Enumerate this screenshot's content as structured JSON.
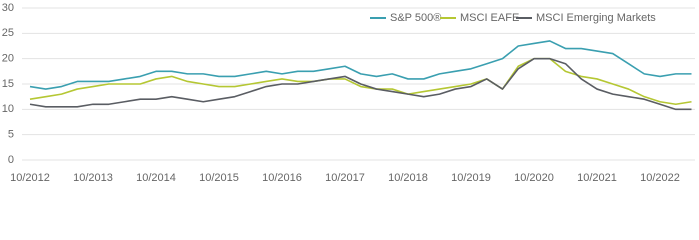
{
  "chart_data": {
    "type": "line",
    "categories": [
      "10/2012",
      null,
      null,
      null,
      "10/2013",
      null,
      null,
      null,
      "10/2014",
      null,
      null,
      null,
      "10/2015",
      null,
      null,
      null,
      "10/2016",
      null,
      null,
      null,
      "10/2017",
      null,
      null,
      null,
      "10/2018",
      null,
      null,
      null,
      "10/2019",
      null,
      null,
      null,
      "10/2020",
      null,
      null,
      null,
      "10/2021",
      null,
      null,
      null,
      "10/2022",
      null,
      null
    ],
    "series": [
      {
        "name": "S&P 500®",
        "color": "#3a9fb0",
        "values": [
          14.5,
          14,
          14.5,
          15.5,
          15.5,
          15.5,
          16,
          16.5,
          17.5,
          17.5,
          17,
          17,
          16.5,
          16.5,
          17,
          17.5,
          17,
          17.5,
          17.5,
          18,
          18.5,
          17,
          16.5,
          17,
          16,
          16,
          17,
          17.5,
          18,
          19,
          20,
          22.5,
          23,
          23.5,
          22,
          22,
          21.5,
          21,
          19,
          17,
          16.5,
          17,
          17
        ]
      },
      {
        "name": "MSCI EAFE",
        "color": "#b5c733",
        "values": [
          12,
          12.5,
          13,
          14,
          14.5,
          15,
          15,
          15,
          16,
          16.5,
          15.5,
          15,
          14.5,
          14.5,
          15,
          15.5,
          16,
          15.5,
          15.5,
          16,
          16,
          14.5,
          14,
          14,
          13,
          13.5,
          14,
          14.5,
          15,
          16,
          14,
          18.5,
          20,
          20,
          17.5,
          16.5,
          16,
          15,
          14,
          12.5,
          11.5,
          11,
          11.5
        ]
      },
      {
        "name": "MSCI Emerging Markets",
        "color": "#5a5d63",
        "values": [
          11,
          10.5,
          10.5,
          10.5,
          11,
          11,
          11.5,
          12,
          12,
          12.5,
          12,
          11.5,
          12,
          12.5,
          13.5,
          14.5,
          15,
          15,
          15.5,
          16,
          16.5,
          15,
          14,
          13.5,
          13,
          12.5,
          13,
          14,
          14.5,
          16,
          14,
          18,
          20,
          20,
          19,
          16,
          14,
          13,
          12.5,
          12,
          11,
          10,
          10
        ]
      }
    ],
    "ylim": [
      0,
      30
    ],
    "yticks": [
      0,
      5,
      10,
      15,
      20,
      25,
      30
    ],
    "grid": true,
    "legend": "top-right"
  }
}
